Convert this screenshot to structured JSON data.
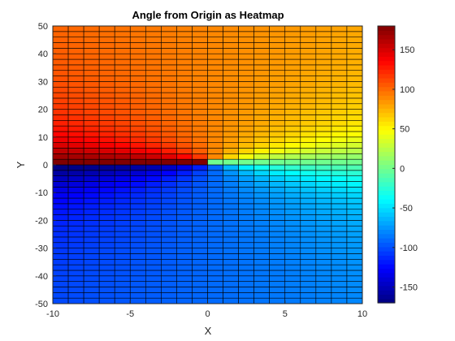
{
  "chart_data": {
    "type": "heatmap",
    "title": "Angle from Origin as Heatmap",
    "xlabel": "X",
    "ylabel": "Y",
    "xlim": [
      -10,
      10
    ],
    "ylim": [
      -50,
      50
    ],
    "x_grid": {
      "start": -10,
      "end": 10,
      "step": 1
    },
    "y_grid": {
      "start": -50,
      "end": 50,
      "step": 2
    },
    "value_function": "atan2(y, x) in degrees",
    "colormap": "jet",
    "clim": [
      -170,
      180
    ],
    "xticks": [
      -10,
      -5,
      0,
      5,
      10
    ],
    "yticks": [
      -50,
      -40,
      -30,
      -20,
      -10,
      0,
      10,
      20,
      30,
      40,
      50
    ],
    "colorbar_ticks": [
      -150,
      -100,
      -50,
      0,
      50,
      100,
      150
    ],
    "edge_color": "#000000"
  }
}
